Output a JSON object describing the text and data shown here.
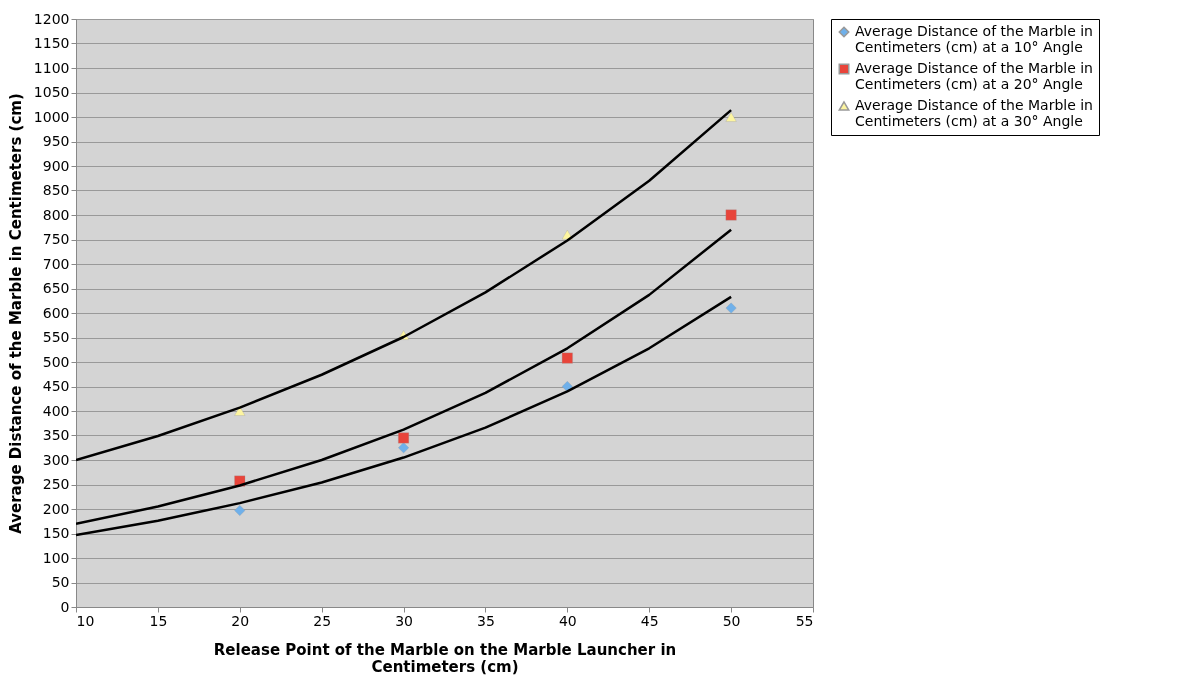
{
  "chart_data": {
    "type": "scatter",
    "xlabel": "Release Point of the Marble on the Marble Launcher in Centimeters (cm)",
    "ylabel": "Average Distance of the Marble in Centimeters (cm)",
    "xlim": [
      10,
      55
    ],
    "xticks": [
      10,
      15,
      20,
      25,
      30,
      35,
      40,
      45,
      50,
      55
    ],
    "ylim": [
      0,
      1200
    ],
    "yticks": [
      0,
      50,
      100,
      150,
      200,
      250,
      300,
      350,
      400,
      450,
      500,
      550,
      600,
      650,
      700,
      750,
      800,
      850,
      900,
      950,
      1000,
      1050,
      1100,
      1150,
      1200
    ],
    "grid": "y",
    "legend": "right",
    "series": [
      {
        "name": "Average Distance of the Marble in Centimeters (cm) at a 10° Angle",
        "color": "#6fb0ea",
        "marker": "diamond",
        "x": [
          20,
          30,
          40,
          50
        ],
        "values": [
          197,
          325,
          450,
          610
        ]
      },
      {
        "name": "Average Distance of the Marble in Centimeters (cm) at a 20° Angle",
        "color": "#e8443a",
        "marker": "square",
        "x": [
          20,
          30,
          40,
          50
        ],
        "values": [
          257,
          345,
          508,
          800
        ]
      },
      {
        "name": "Average Distance of the Marble in Centimeters (cm) at a 30° Angle",
        "color": "#fdf5a0",
        "marker": "triangle",
        "x": [
          20,
          30,
          40,
          50
        ],
        "values": [
          400,
          555,
          760,
          1000
        ]
      },
      {
        "type": "line",
        "color": "#000000",
        "x": [
          10,
          15,
          20,
          25,
          30,
          35,
          40,
          45,
          50
        ],
        "values": [
          147,
          176,
          212,
          254,
          305,
          366,
          440,
          528,
          633
        ]
      },
      {
        "type": "line",
        "color": "#000000",
        "x": [
          10,
          15,
          20,
          25,
          30,
          35,
          40,
          45,
          50
        ],
        "values": [
          170,
          205,
          248,
          300,
          362,
          437,
          528,
          637,
          770
        ]
      },
      {
        "type": "line",
        "color": "#000000",
        "x": [
          10,
          15,
          20,
          25,
          30,
          35,
          40,
          45,
          50
        ],
        "values": [
          300,
          349,
          407,
          474,
          551,
          642,
          748,
          870,
          1014
        ]
      }
    ]
  }
}
